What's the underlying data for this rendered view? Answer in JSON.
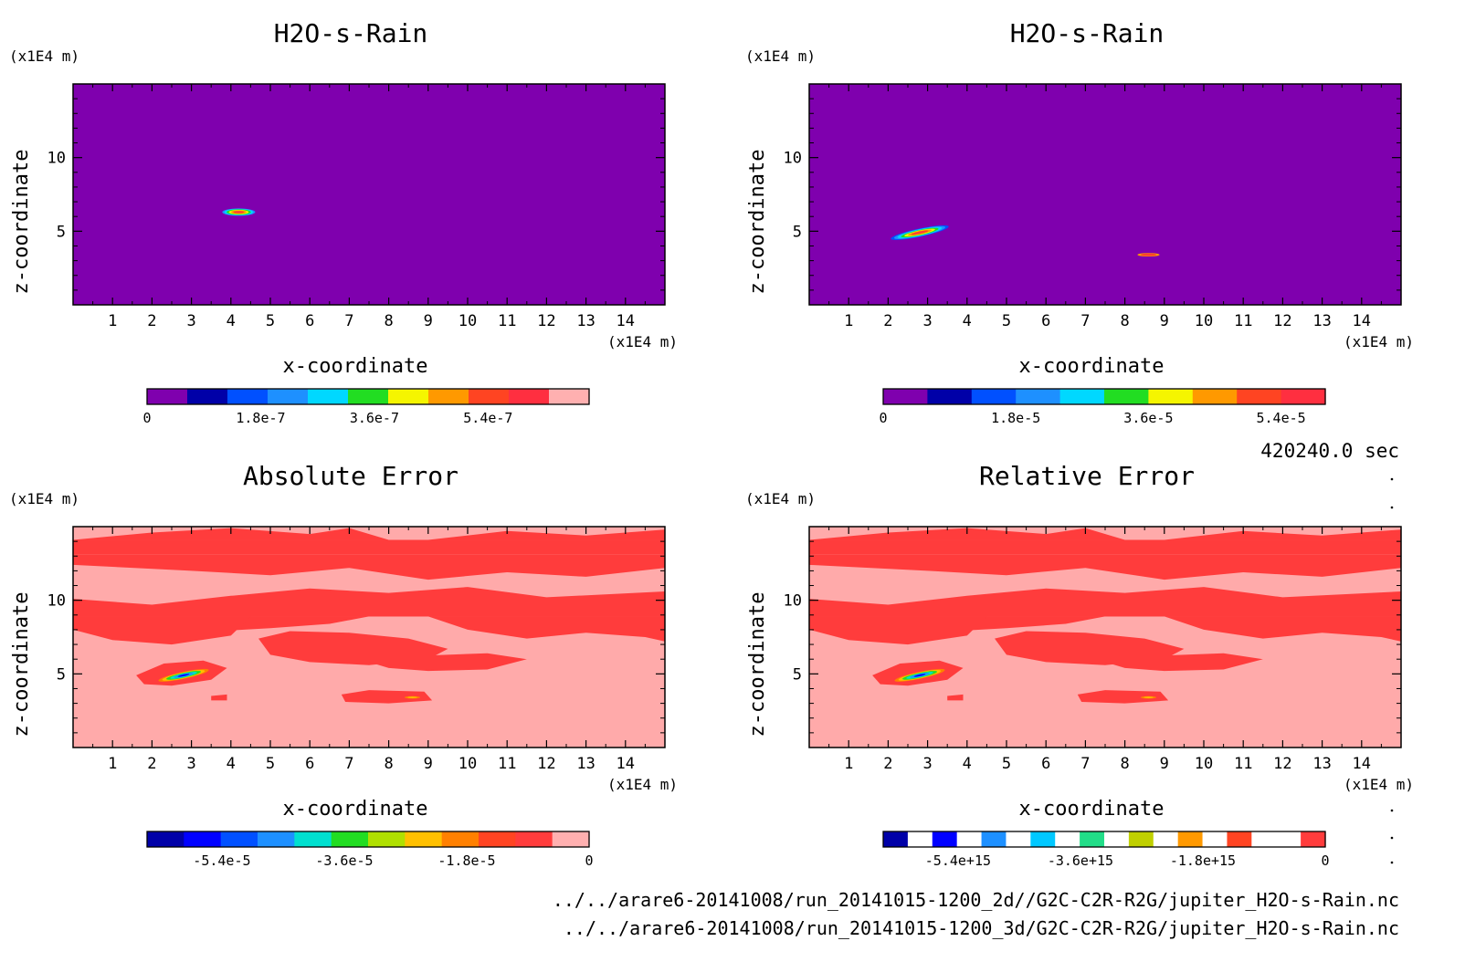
{
  "time_label": "420240.0 sec",
  "files": [
    "../../arare6-20141008/run_20141015-1200_2d//G2C-C2R-R2G/jupiter_H2O-s-Rain.nc",
    "../../arare6-20141008/run_20141015-1200_3d/G2C-C2R-R2G/jupiter_H2O-s-Rain.nc"
  ],
  "chart_data": [
    {
      "type": "heatmap",
      "title": "H2O-s-Rain",
      "xlabel": "x-coordinate",
      "ylabel": "z-coordinate",
      "x_unit": "(x1E4 m)",
      "y_unit": "(x1E4 m)",
      "xlim": [
        0,
        15
      ],
      "ylim": [
        0,
        15
      ],
      "x_ticks": [
        "1",
        "2",
        "3",
        "4",
        "5",
        "6",
        "7",
        "8",
        "9",
        "10",
        "11",
        "12",
        "13",
        "14"
      ],
      "y_ticks": [
        "5",
        "10"
      ],
      "background_color": "#7f00ae",
      "colorbar": {
        "colors": [
          "#7f00ae",
          "#0000a8",
          "#0050ff",
          "#1e90ff",
          "#00d8ff",
          "#22dd22",
          "#f5f500",
          "#ff9900",
          "#ff4422",
          "#ff2f40",
          "#ffb0b0"
        ],
        "tick_labels": [
          "0",
          "1.8e-7",
          "3.6e-7",
          "5.4e-7"
        ],
        "tick_values": [
          0,
          1.8e-07,
          3.6e-07,
          5.4e-07
        ],
        "vmin": 0,
        "vmax": 7e-07
      },
      "features": [
        {
          "x": 4.2,
          "z": 6.3,
          "rx": 0.42,
          "rz": 0.25,
          "peak": 6.5e-07
        }
      ]
    },
    {
      "type": "heatmap",
      "title": "H2O-s-Rain",
      "xlabel": "x-coordinate",
      "ylabel": "z-coordinate",
      "x_unit": "(x1E4 m)",
      "y_unit": "(x1E4 m)",
      "xlim": [
        0,
        15
      ],
      "ylim": [
        0,
        15
      ],
      "x_ticks": [
        "1",
        "2",
        "3",
        "4",
        "5",
        "6",
        "7",
        "8",
        "9",
        "10",
        "11",
        "12",
        "13",
        "14"
      ],
      "y_ticks": [
        "5",
        "10"
      ],
      "background_color": "#7f00ae",
      "colorbar": {
        "colors": [
          "#7f00ae",
          "#0000a8",
          "#0050ff",
          "#1e90ff",
          "#00d8ff",
          "#22dd22",
          "#f5f500",
          "#ff9900",
          "#ff4422",
          "#ff2f40"
        ],
        "tick_labels": [
          "0",
          "1.8e-5",
          "3.6e-5",
          "5.4e-5"
        ],
        "tick_values": [
          0,
          1.8e-05,
          3.6e-05,
          5.4e-05
        ],
        "vmin": 0,
        "vmax": 6e-05
      },
      "features": [
        {
          "x": 2.8,
          "z": 4.9,
          "rx": 0.75,
          "rz": 0.28,
          "tilt": -12,
          "peak": 5.8e-05
        },
        {
          "x": 8.6,
          "z": 3.4,
          "rx": 0.28,
          "rz": 0.12,
          "peak": 2.5e-05
        }
      ]
    },
    {
      "type": "heatmap",
      "title": "Absolute Error",
      "xlabel": "x-coordinate",
      "ylabel": "z-coordinate",
      "x_unit": "(x1E4 m)",
      "y_unit": "(x1E4 m)",
      "xlim": [
        0,
        15
      ],
      "ylim": [
        0,
        15
      ],
      "x_ticks": [
        "1",
        "2",
        "3",
        "4",
        "5",
        "6",
        "7",
        "8",
        "9",
        "10",
        "11",
        "12",
        "13",
        "14"
      ],
      "y_ticks": [
        "5",
        "10"
      ],
      "background_color": "#ffaaaa",
      "colorbar": {
        "colors": [
          "#0000a8",
          "#0000ff",
          "#0050ff",
          "#1e90ff",
          "#00e0d0",
          "#22dd22",
          "#b0e000",
          "#ffc000",
          "#ff8000",
          "#ff4422",
          "#ff3c3c",
          "#ffb0b0"
        ],
        "tick_labels": [
          "-5.4e-5",
          "-3.6e-5",
          "-1.8e-5",
          "0"
        ],
        "tick_values": [
          -5.4e-05,
          -3.6e-05,
          -1.8e-05,
          0
        ],
        "vmin": -6.5e-05,
        "vmax": 0
      },
      "features": [
        {
          "x": 2.8,
          "z": 4.9,
          "rx": 0.75,
          "rz": 0.28,
          "tilt": -12,
          "peak": -5.8e-05
        },
        {
          "x": 8.6,
          "z": 3.4,
          "rx": 0.28,
          "rz": 0.12,
          "peak": -2.5e-05
        }
      ]
    },
    {
      "type": "heatmap",
      "title": "Relative Error",
      "xlabel": "x-coordinate",
      "ylabel": "z-coordinate",
      "x_unit": "(x1E4 m)",
      "y_unit": "(x1E4 m)",
      "xlim": [
        0,
        15
      ],
      "ylim": [
        0,
        15
      ],
      "x_ticks": [
        "1",
        "2",
        "3",
        "4",
        "5",
        "6",
        "7",
        "8",
        "9",
        "10",
        "11",
        "12",
        "13",
        "14"
      ],
      "y_ticks": [
        "5",
        "10"
      ],
      "background_color": "#ffaaaa",
      "colorbar": {
        "colors": [
          "#0000a8",
          "#ffffff",
          "#0000ff",
          "#ffffff",
          "#1e90ff",
          "#ffffff",
          "#00c8ff",
          "#ffffff",
          "#22dd88",
          "#ffffff",
          "#c0d000",
          "#ffffff",
          "#ff9900",
          "#ffffff",
          "#ff4422",
          "#ffffff",
          "#ffffff",
          "#ff3c3c"
        ],
        "tick_labels": [
          "-5.4e+15",
          "-3.6e+15",
          "-1.8e+15",
          "0"
        ],
        "tick_values": [
          -5400000000000000.0,
          -3600000000000000.0,
          -1800000000000000.0,
          0
        ],
        "vmin": -6500000000000000.0,
        "vmax": 0
      },
      "features": [
        {
          "x": 2.8,
          "z": 4.9,
          "rx": 0.75,
          "rz": 0.28,
          "tilt": -12,
          "peak": -5800000000000000.0
        },
        {
          "x": 8.6,
          "z": 3.4,
          "rx": 0.28,
          "rz": 0.12,
          "peak": -2500000000000000.0
        }
      ]
    }
  ]
}
